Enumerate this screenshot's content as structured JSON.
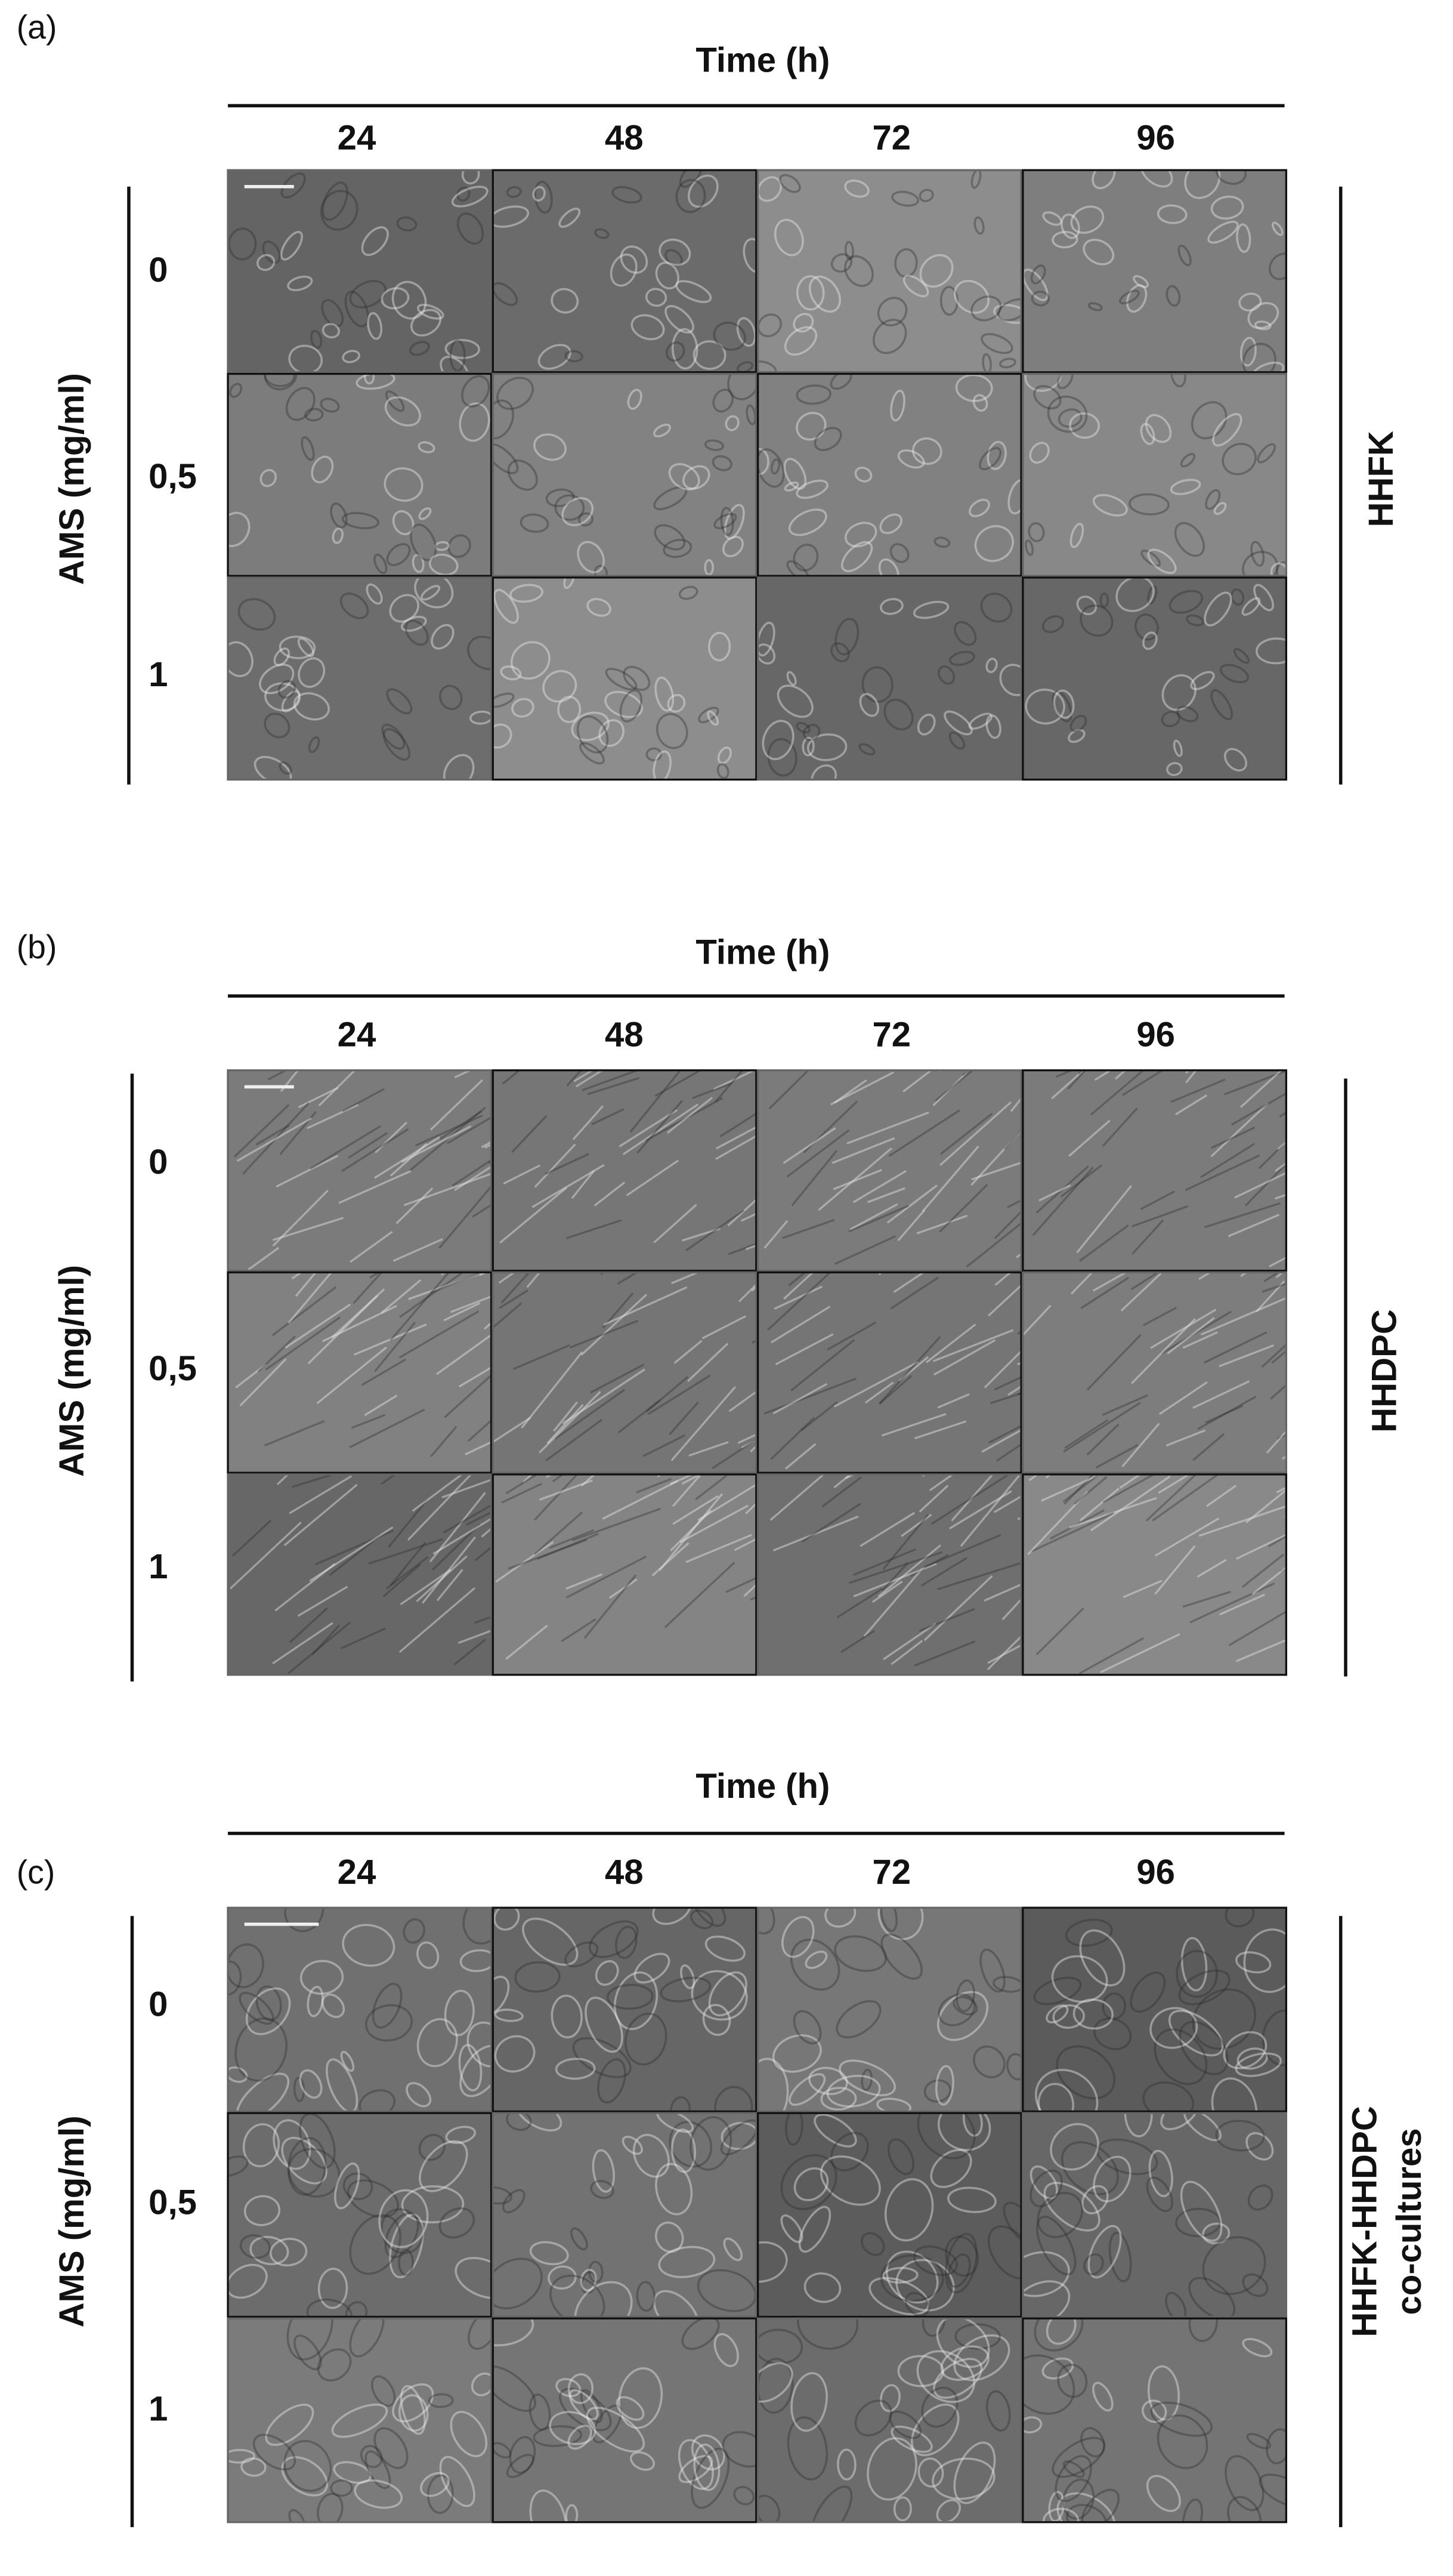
{
  "panels": [
    {
      "label": "(a)",
      "header": "Time (h)",
      "columns": [
        "24",
        "48",
        "72",
        "96"
      ],
      "rows": [
        "0",
        "0,5",
        "1"
      ],
      "y_label": "AMS (mg/ml)",
      "side_label": [
        "HHFK"
      ]
    },
    {
      "label": "(b)",
      "header": "Time (h)",
      "columns": [
        "24",
        "48",
        "72",
        "96"
      ],
      "rows": [
        "0",
        "0,5",
        "1"
      ],
      "y_label": "AMS (mg/ml)",
      "side_label": [
        "HHDPC"
      ]
    },
    {
      "label": "(c)",
      "header": "Time (h)",
      "columns": [
        "24",
        "48",
        "72",
        "96"
      ],
      "rows": [
        "0",
        "0,5",
        "1"
      ],
      "y_label": "AMS (mg/ml)",
      "side_label": [
        "HHFK-HHDPC",
        "co-cultures"
      ]
    }
  ]
}
